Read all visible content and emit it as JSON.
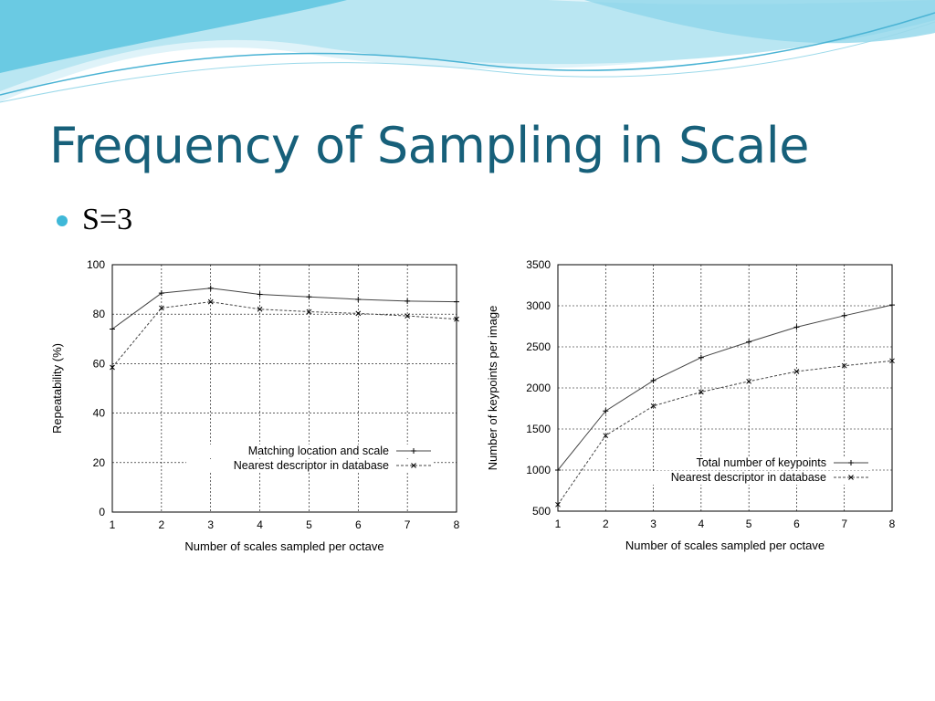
{
  "slide": {
    "title": "Frequency of Sampling in Scale",
    "bullet": "S=3",
    "colors": {
      "title": "#17607a",
      "bullet": "#3fb8d8",
      "wave_light": "#b9e6f2",
      "wave_dark": "#5cc4e0"
    }
  },
  "chart_data": [
    {
      "type": "line",
      "xlabel": "Number of scales sampled per octave",
      "ylabel": "Repeatability (%)",
      "x": [
        1,
        2,
        3,
        4,
        5,
        6,
        7,
        8
      ],
      "xlim": [
        1,
        8
      ],
      "ylim": [
        0,
        100
      ],
      "x_ticks": [
        "1",
        "2",
        "3",
        "4",
        "5",
        "6",
        "7",
        "8"
      ],
      "y_ticks": [
        "0",
        "20",
        "40",
        "60",
        "80",
        "100"
      ],
      "grid": true,
      "legend_position": "lower-right",
      "series": [
        {
          "name": "Matching location and scale",
          "marker": "+",
          "dashed": false,
          "values": [
            74,
            88.5,
            90.5,
            88,
            87,
            86,
            85.3,
            85
          ]
        },
        {
          "name": "Nearest descriptor in database",
          "marker": "x",
          "dashed": true,
          "values": [
            58.5,
            82.5,
            85,
            82,
            81,
            80.3,
            79.3,
            78
          ]
        }
      ]
    },
    {
      "type": "line",
      "xlabel": "Number of scales sampled per octave",
      "ylabel": "Number of keypoints per image",
      "x": [
        1,
        2,
        3,
        4,
        5,
        6,
        7,
        8
      ],
      "xlim": [
        1,
        8
      ],
      "ylim": [
        500,
        3500
      ],
      "x_ticks": [
        "1",
        "2",
        "3",
        "4",
        "5",
        "6",
        "7",
        "8"
      ],
      "y_ticks": [
        "500",
        "1000",
        "1500",
        "2000",
        "2500",
        "3000",
        "3500"
      ],
      "grid": true,
      "legend_position": "lower-right",
      "series": [
        {
          "name": "Total number of keypoints",
          "marker": "+",
          "dashed": false,
          "values": [
            1000,
            1720,
            2090,
            2370,
            2560,
            2740,
            2880,
            3010
          ]
        },
        {
          "name": "Nearest descriptor in database",
          "marker": "x",
          "dashed": true,
          "values": [
            580,
            1420,
            1780,
            1950,
            2080,
            2200,
            2270,
            2330
          ]
        }
      ]
    }
  ]
}
